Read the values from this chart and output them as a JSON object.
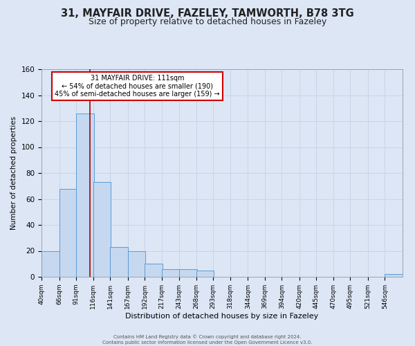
{
  "title": "31, MAYFAIR DRIVE, FAZELEY, TAMWORTH, B78 3TG",
  "subtitle": "Size of property relative to detached houses in Fazeley",
  "xlabel": "Distribution of detached houses by size in Fazeley",
  "ylabel": "Number of detached properties",
  "bin_edges": [
    40,
    66,
    91,
    116,
    141,
    167,
    192,
    217,
    243,
    268,
    293,
    318,
    344,
    369,
    394,
    420,
    445,
    470,
    495,
    521,
    546
  ],
  "bar_heights": [
    20,
    68,
    126,
    73,
    23,
    20,
    10,
    6,
    6,
    5,
    0,
    0,
    0,
    0,
    0,
    0,
    0,
    0,
    0,
    0,
    2
  ],
  "bar_color": "#c5d8f0",
  "bar_edgecolor": "#5b9bd5",
  "vline_x": 111,
  "vline_color": "#aa0000",
  "annotation_lines": [
    "31 MAYFAIR DRIVE: 111sqm",
    "← 54% of detached houses are smaller (190)",
    "45% of semi-detached houses are larger (159) →"
  ],
  "annotation_box_color": "#ffffff",
  "annotation_box_edgecolor": "#cc0000",
  "ylim": [
    0,
    160
  ],
  "yticks": [
    0,
    20,
    40,
    60,
    80,
    100,
    120,
    140,
    160
  ],
  "grid_color": "#c8d4e8",
  "background_color": "#dce6f5",
  "footer_line1": "Contains HM Land Registry data © Crown copyright and database right 2024.",
  "footer_line2": "Contains public sector information licensed under the Open Government Licence v3.0.",
  "title_fontsize": 10.5,
  "subtitle_fontsize": 9
}
